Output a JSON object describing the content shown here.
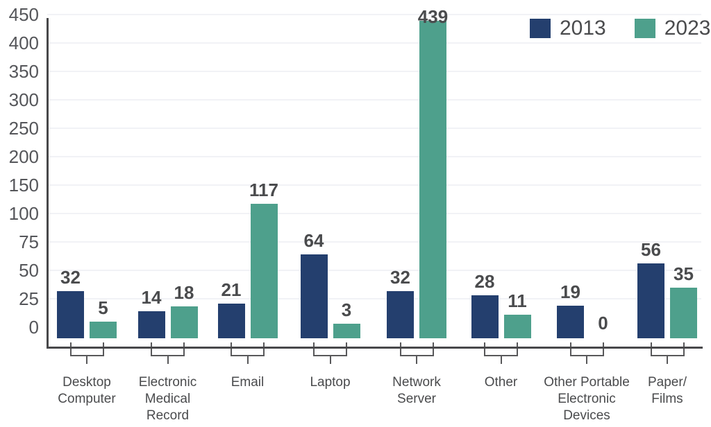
{
  "page": {
    "background": "#ffffff"
  },
  "legend": {
    "items": [
      {
        "label": "2013",
        "color": "#243F6E"
      },
      {
        "label": "2023",
        "color": "#4EA08C"
      }
    ]
  },
  "colors": {
    "axis": "#48484a",
    "tick_text": "#55565a",
    "value_text": "#4a4b4d",
    "grid": "#f1f2f6",
    "bracket": "#58585a",
    "series_2013": "#243F6E",
    "series_2023": "#4EA08C"
  },
  "chart_data": {
    "type": "bar",
    "title": "",
    "xlabel": "",
    "ylabel": "",
    "categories": [
      "Desktop Computer",
      "Electronic Medical Record",
      "Email",
      "Laptop",
      "Network Server",
      "Other",
      "Other Portable Electronic Devices",
      "Paper/ Films"
    ],
    "category_label_lines": [
      [
        "Desktop",
        "Computer"
      ],
      [
        "Electronic",
        "Medical",
        "Record"
      ],
      [
        "Email"
      ],
      [
        "Laptop"
      ],
      [
        "Network",
        "Server"
      ],
      [
        "Other"
      ],
      [
        "Other Portable",
        "Electronic",
        "Devices"
      ],
      [
        "Paper/",
        "Films"
      ]
    ],
    "series": [
      {
        "name": "2013",
        "color": "#243F6E",
        "values": [
          32,
          14,
          21,
          64,
          32,
          28,
          19,
          56
        ]
      },
      {
        "name": "2023",
        "color": "#4EA08C",
        "values": [
          5,
          18,
          117,
          3,
          439,
          11,
          0,
          35
        ]
      }
    ],
    "value_labels": true,
    "y_ticks": [
      0,
      25,
      50,
      75,
      100,
      150,
      200,
      250,
      300,
      350,
      400,
      450
    ],
    "ylim": [
      0,
      450
    ],
    "y_axis_note": "broken scale - ticks equally spaced: steps of 25 up to 100, then steps of 50 up to 450",
    "grid": true,
    "legend_position": "top-right"
  }
}
